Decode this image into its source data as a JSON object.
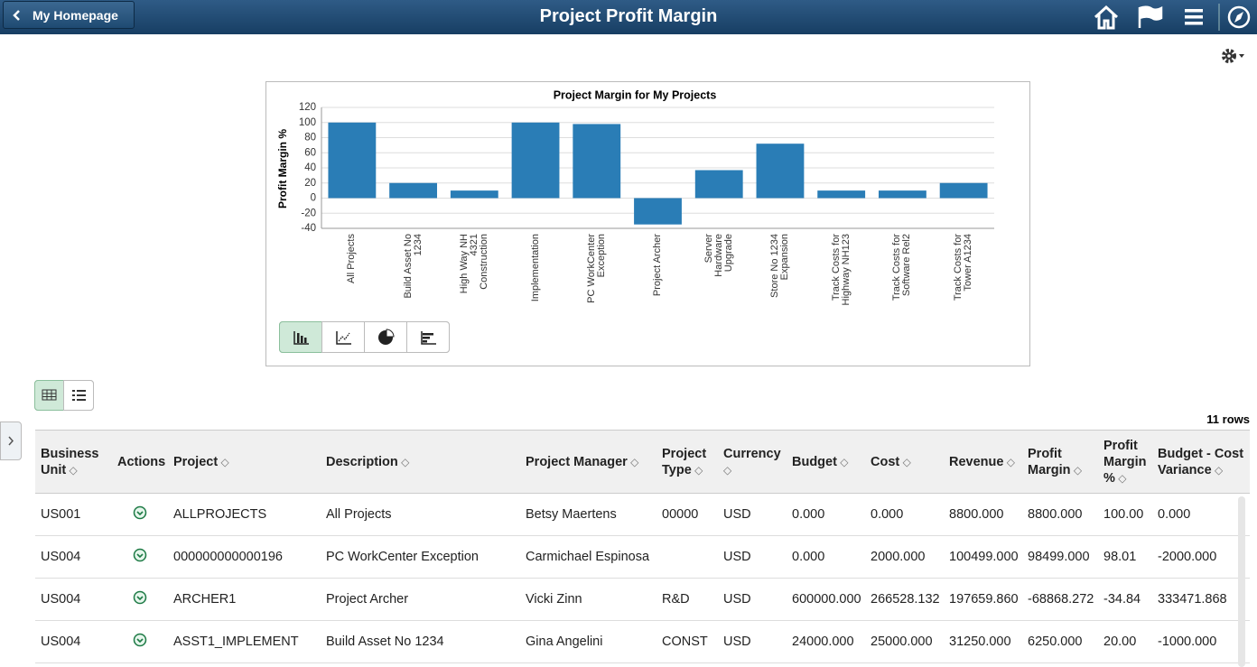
{
  "header": {
    "back": "My Homepage",
    "title": "Project Profit Margin"
  },
  "chart_data": {
    "type": "bar",
    "title": "Project Margin for My Projects",
    "y_label": "Profit Margin %",
    "categories": [
      "All Projects",
      "Build Asset No 1234",
      "High Way NH 4321 Construction",
      "Implementation",
      "PC WorkCenter Exception",
      "Project Archer",
      "Server Hardware Upgrade",
      "Store No 1234 Expansion",
      "Track Costs for Highway NH123",
      "Track Costs for Software Rel2",
      "Track Costs for Tower A1234"
    ],
    "values": [
      100,
      20,
      10,
      100,
      98.01,
      -34.84,
      37,
      72,
      10,
      10,
      20
    ],
    "color": "#2a7db6",
    "ylim": [
      -40,
      120
    ],
    "yticks": [
      -40,
      -20,
      0,
      20,
      40,
      60,
      80,
      100,
      120
    ],
    "grid": true
  },
  "table": {
    "row_count": "11 rows",
    "columns": [
      "Business Unit",
      "Actions",
      "Project",
      "Description",
      "Project Manager",
      "Project Type",
      "Currency",
      "Budget",
      "Cost",
      "Revenue",
      "Profit Margin",
      "Profit Margin %",
      "Budget - Cost Variance"
    ],
    "rows": [
      [
        "US001",
        null,
        "ALLPROJECTS",
        "All Projects",
        "Betsy Maertens",
        "00000",
        "USD",
        "0.000",
        "0.000",
        "8800.000",
        "8800.000",
        "100.00",
        "0.000"
      ],
      [
        "US004",
        null,
        "000000000000196",
        "PC WorkCenter Exception",
        "Carmichael Espinosa",
        null,
        "USD",
        "0.000",
        "2000.000",
        "100499.000",
        "98499.000",
        "98.01",
        "-2000.000"
      ],
      [
        "US004",
        null,
        "ARCHER1",
        "Project Archer",
        "Vicki Zinn",
        "R&D",
        "USD",
        "600000.000",
        "266528.132",
        "197659.860",
        "-68868.272",
        "-34.84",
        "333471.868"
      ],
      [
        "US004",
        null,
        "ASST1_IMPLEMENT",
        "Build Asset No 1234",
        "Gina Angelini",
        "CONST",
        "USD",
        "24000.000",
        "25000.000",
        "31250.000",
        "6250.000",
        "20.00",
        "-1000.000"
      ]
    ]
  }
}
